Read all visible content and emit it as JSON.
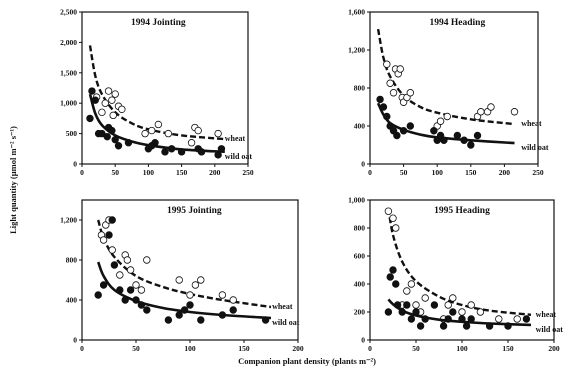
{
  "figure": {
    "ylabel": "Light quantity (µmol m⁻² s⁻¹)",
    "xlabel": "Companion plant density (plants m⁻²)"
  },
  "chart_data": [
    {
      "type": "scatter",
      "title": "1994 Jointing",
      "xlim": [
        0,
        250
      ],
      "ylim": [
        0,
        2500
      ],
      "x_ticks": [
        "0",
        "50",
        "100",
        "150",
        "200",
        "250"
      ],
      "y_ticks": [
        "0",
        "500",
        "1,000",
        "1,500",
        "2,000",
        "2,500"
      ],
      "series": [
        {
          "name": "wheat",
          "marker": "open",
          "curve": "dashed",
          "points": [
            [
              22,
              1100
            ],
            [
              30,
              850
            ],
            [
              35,
              1000
            ],
            [
              40,
              1200
            ],
            [
              45,
              1050
            ],
            [
              47,
              800
            ],
            [
              50,
              1150
            ],
            [
              55,
              950
            ],
            [
              60,
              900
            ],
            [
              95,
              500
            ],
            [
              105,
              550
            ],
            [
              115,
              650
            ],
            [
              130,
              500
            ],
            [
              165,
              350
            ],
            [
              170,
              600
            ],
            [
              175,
              550
            ],
            [
              205,
              500
            ]
          ],
          "curve_points": [
            [
              12,
              1950
            ],
            [
              20,
              1450
            ],
            [
              30,
              1150
            ],
            [
              50,
              850
            ],
            [
              75,
              670
            ],
            [
              100,
              570
            ],
            [
              150,
              470
            ],
            [
              215,
              410
            ]
          ]
        },
        {
          "name": "wild oat",
          "marker": "filled",
          "curve": "solid",
          "points": [
            [
              12,
              750
            ],
            [
              15,
              1200
            ],
            [
              20,
              1050
            ],
            [
              25,
              500
            ],
            [
              30,
              500
            ],
            [
              38,
              450
            ],
            [
              40,
              600
            ],
            [
              45,
              550
            ],
            [
              50,
              400
            ],
            [
              55,
              300
            ],
            [
              70,
              350
            ],
            [
              100,
              250
            ],
            [
              105,
              300
            ],
            [
              110,
              350
            ],
            [
              125,
              200
            ],
            [
              135,
              250
            ],
            [
              150,
              200
            ],
            [
              175,
              250
            ],
            [
              180,
              200
            ],
            [
              205,
              150
            ],
            [
              210,
              250
            ]
          ],
          "curve_points": [
            [
              12,
              1150
            ],
            [
              20,
              830
            ],
            [
              30,
              640
            ],
            [
              50,
              470
            ],
            [
              75,
              370
            ],
            [
              100,
              310
            ],
            [
              150,
              240
            ],
            [
              215,
              200
            ]
          ]
        }
      ]
    },
    {
      "type": "scatter",
      "title": "1994 Heading",
      "xlim": [
        0,
        250
      ],
      "ylim": [
        0,
        1600
      ],
      "x_ticks": [
        "0",
        "50",
        "100",
        "150",
        "200",
        "250"
      ],
      "y_ticks": [
        "0",
        "400",
        "800",
        "1,200",
        "1,600"
      ],
      "series": [
        {
          "name": "wheat",
          "marker": "open",
          "curve": "dashed",
          "points": [
            [
              25,
              1050
            ],
            [
              30,
              850
            ],
            [
              35,
              750
            ],
            [
              38,
              1000
            ],
            [
              42,
              950
            ],
            [
              45,
              1000
            ],
            [
              48,
              700
            ],
            [
              50,
              650
            ],
            [
              55,
              700
            ],
            [
              60,
              750
            ],
            [
              100,
              400
            ],
            [
              105,
              450
            ],
            [
              115,
              500
            ],
            [
              160,
              500
            ],
            [
              165,
              550
            ],
            [
              175,
              550
            ],
            [
              180,
              600
            ],
            [
              215,
              550
            ]
          ],
          "curve_points": [
            [
              12,
              1420
            ],
            [
              20,
              1120
            ],
            [
              30,
              920
            ],
            [
              50,
              720
            ],
            [
              75,
              600
            ],
            [
              100,
              540
            ],
            [
              150,
              470
            ],
            [
              215,
              420
            ]
          ]
        },
        {
          "name": "wild oat",
          "marker": "filled",
          "curve": "solid",
          "points": [
            [
              15,
              680
            ],
            [
              20,
              600
            ],
            [
              25,
              500
            ],
            [
              30,
              400
            ],
            [
              35,
              350
            ],
            [
              40,
              300
            ],
            [
              50,
              350
            ],
            [
              60,
              400
            ],
            [
              95,
              350
            ],
            [
              100,
              250
            ],
            [
              105,
              300
            ],
            [
              110,
              250
            ],
            [
              130,
              300
            ],
            [
              140,
              250
            ],
            [
              150,
              200
            ],
            [
              160,
              300
            ]
          ],
          "curve_points": [
            [
              12,
              640
            ],
            [
              20,
              520
            ],
            [
              30,
              430
            ],
            [
              50,
              360
            ],
            [
              75,
              310
            ],
            [
              100,
              280
            ],
            [
              150,
              250
            ],
            [
              215,
              220
            ]
          ]
        }
      ]
    },
    {
      "type": "scatter",
      "title": "1995 Jointing",
      "xlim": [
        0,
        200
      ],
      "ylim": [
        0,
        1400
      ],
      "x_ticks": [
        "0",
        "50",
        "100",
        "150",
        "200"
      ],
      "y_ticks": [
        "0",
        "400",
        "800",
        "1,200"
      ],
      "series": [
        {
          "name": "wheat",
          "marker": "open",
          "curve": "dashed",
          "points": [
            [
              18,
              1050
            ],
            [
              20,
              1000
            ],
            [
              22,
              1150
            ],
            [
              25,
              1200
            ],
            [
              28,
              900
            ],
            [
              35,
              650
            ],
            [
              40,
              850
            ],
            [
              42,
              800
            ],
            [
              45,
              700
            ],
            [
              50,
              550
            ],
            [
              55,
              500
            ],
            [
              60,
              800
            ],
            [
              90,
              600
            ],
            [
              100,
              450
            ],
            [
              105,
              550
            ],
            [
              110,
              600
            ],
            [
              130,
              450
            ],
            [
              140,
              400
            ]
          ],
          "curve_points": [
            [
              15,
              1200
            ],
            [
              20,
              1020
            ],
            [
              30,
              830
            ],
            [
              50,
              640
            ],
            [
              75,
              530
            ],
            [
              100,
              460
            ],
            [
              130,
              400
            ],
            [
              175,
              330
            ]
          ]
        },
        {
          "name": "wild oat",
          "marker": "filled",
          "curve": "solid",
          "points": [
            [
              15,
              450
            ],
            [
              20,
              550
            ],
            [
              25,
              1050
            ],
            [
              28,
              1200
            ],
            [
              30,
              750
            ],
            [
              35,
              500
            ],
            [
              40,
              400
            ],
            [
              45,
              500
            ],
            [
              50,
              400
            ],
            [
              55,
              350
            ],
            [
              60,
              300
            ],
            [
              80,
              200
            ],
            [
              90,
              250
            ],
            [
              95,
              300
            ],
            [
              100,
              350
            ],
            [
              110,
              200
            ],
            [
              130,
              250
            ],
            [
              140,
              300
            ],
            [
              170,
              200
            ]
          ],
          "curve_points": [
            [
              15,
              780
            ],
            [
              20,
              640
            ],
            [
              30,
              500
            ],
            [
              50,
              390
            ],
            [
              75,
              320
            ],
            [
              100,
              280
            ],
            [
              130,
              250
            ],
            [
              175,
              220
            ]
          ]
        }
      ]
    },
    {
      "type": "scatter",
      "title": "1995 Heading",
      "xlim": [
        0,
        200
      ],
      "ylim": [
        0,
        1000
      ],
      "x_ticks": [
        "0",
        "50",
        "100",
        "150",
        "200"
      ],
      "y_ticks": [
        "0",
        "200",
        "400",
        "600",
        "800",
        "1,000"
      ],
      "series": [
        {
          "name": "wheat",
          "marker": "open",
          "curve": "dashed",
          "points": [
            [
              20,
              920
            ],
            [
              25,
              870
            ],
            [
              28,
              800
            ],
            [
              35,
              250
            ],
            [
              40,
              350
            ],
            [
              45,
              400
            ],
            [
              50,
              250
            ],
            [
              55,
              200
            ],
            [
              60,
              300
            ],
            [
              80,
              150
            ],
            [
              85,
              250
            ],
            [
              90,
              300
            ],
            [
              100,
              200
            ],
            [
              110,
              250
            ],
            [
              120,
              200
            ],
            [
              140,
              150
            ],
            [
              160,
              150
            ]
          ],
          "curve_points": [
            [
              20,
              940
            ],
            [
              25,
              750
            ],
            [
              35,
              560
            ],
            [
              50,
              420
            ],
            [
              75,
              310
            ],
            [
              100,
              250
            ],
            [
              130,
              210
            ],
            [
              175,
              180
            ]
          ]
        },
        {
          "name": "wild oat",
          "marker": "filled",
          "curve": "solid",
          "points": [
            [
              20,
              200
            ],
            [
              22,
              450
            ],
            [
              25,
              500
            ],
            [
              28,
              400
            ],
            [
              30,
              250
            ],
            [
              35,
              200
            ],
            [
              40,
              250
            ],
            [
              45,
              150
            ],
            [
              50,
              200
            ],
            [
              55,
              100
            ],
            [
              60,
              150
            ],
            [
              70,
              250
            ],
            [
              80,
              100
            ],
            [
              85,
              150
            ],
            [
              90,
              200
            ],
            [
              100,
              150
            ],
            [
              105,
              100
            ],
            [
              110,
              150
            ],
            [
              130,
              100
            ],
            [
              150,
              100
            ],
            [
              170,
              150
            ]
          ],
          "curve_points": [
            [
              20,
              290
            ],
            [
              25,
              255
            ],
            [
              35,
              210
            ],
            [
              50,
              175
            ],
            [
              75,
              145
            ],
            [
              100,
              130
            ],
            [
              130,
              118
            ],
            [
              175,
              108
            ]
          ]
        }
      ]
    }
  ]
}
